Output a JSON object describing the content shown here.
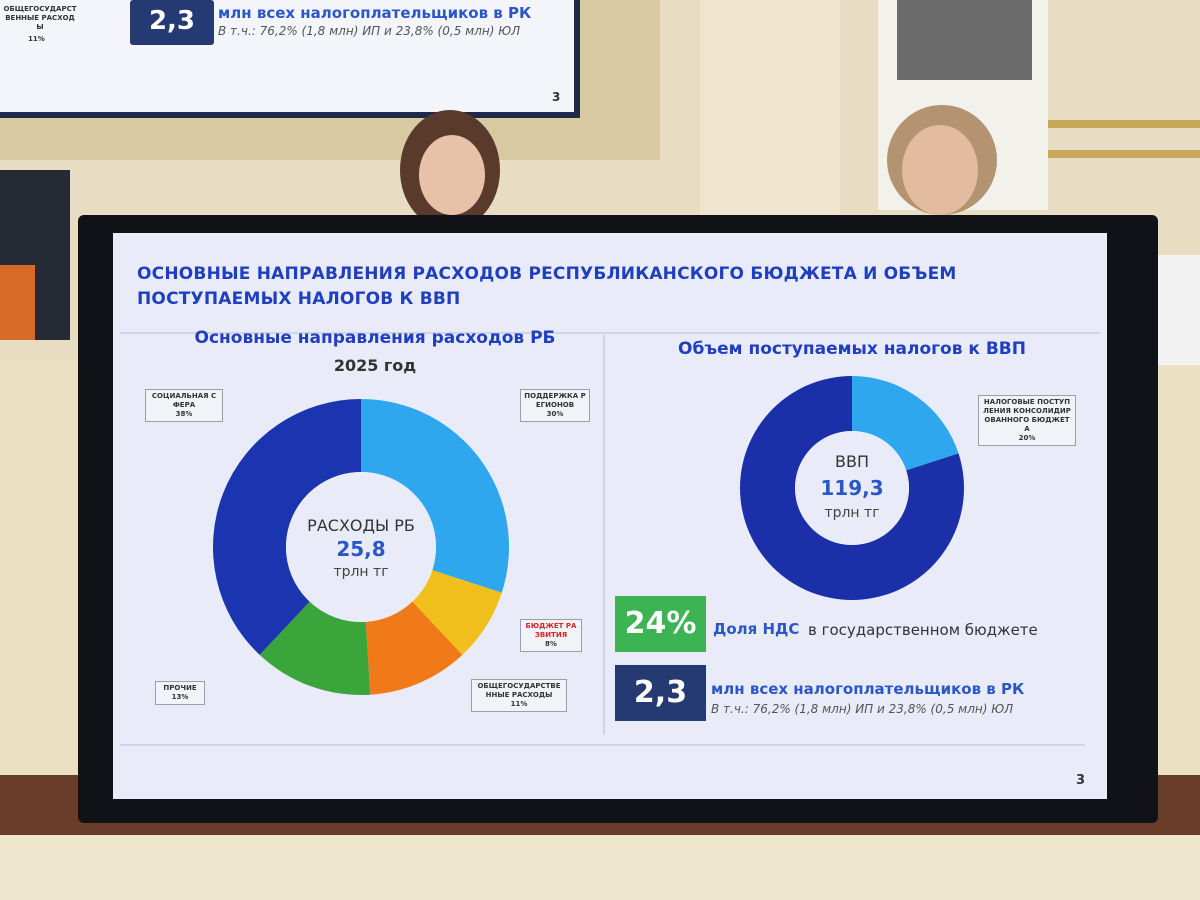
{
  "slide": {
    "title": "ОСНОВНЫЕ НАПРАВЛЕНИЯ РАСХОДОВ РЕСПУБЛИКАНСКОГО БЮДЖЕТА И ОБЪЕМ ПОСТУПАЕМЫХ НАЛОГОВ К ВВП",
    "page": "3",
    "stats": [
      {
        "value": "24%",
        "label": "Доля НДС",
        "text": "в государственном бюджете"
      },
      {
        "value": "2,3",
        "label": "млн всех налогоплательщиков в РК",
        "text": "В т.ч.: 76,2% (1,8 млн) ИП и 23,8% (0,5 млн) ЮЛ"
      }
    ]
  },
  "background_screen": {
    "category": "ОБЩЕГОСУДАРСТ ВЕННЫЕ РАСХОДЫ",
    "share": "11%",
    "value": "2,3",
    "label": "млн всех налогоплательщиков в РК",
    "text": "В т.ч.: 76,2% (1,8 млн) ИП и 23,8% (0,5 млн) ЮЛ",
    "page": "3"
  },
  "chart_data": [
    {
      "type": "pie",
      "title": "Основные направления расходов РБ",
      "subtitle": "2025 год",
      "center_label": "РАСХОДЫ РБ",
      "center_value": "25,8",
      "center_unit": "трлн тг",
      "categories": [
        "ПОДДЕРЖКА РЕГИОНОВ",
        "БЮДЖЕТ РАЗВИТИЯ",
        "ОБЩЕГОСУДАРСТВЕННЫЕ РАСХОДЫ",
        "ПРОЧИЕ",
        "СОЦИАЛЬНАЯ СФЕРА"
      ],
      "values": [
        30,
        8,
        11,
        13,
        38
      ],
      "value_labels": [
        "30%",
        "8%",
        "11%",
        "13%",
        "38%"
      ],
      "colors": [
        "#2ea7ef",
        "#f1bf1b",
        "#ef7a17",
        "#3aa53a",
        "#1b35b0"
      ]
    },
    {
      "type": "pie",
      "title": "Объем поступаемых налогов к ВВП",
      "center_label": "ВВП",
      "center_value": "119,3",
      "center_unit": "трлн тг",
      "categories": [
        "НАЛОГОВЫЕ ПОСТУПЛЕНИЯ КОНСОЛИДИРОВАННОГО БЮДЖЕТА",
        null
      ],
      "values": [
        20,
        80
      ],
      "value_labels": [
        "20%",
        null
      ],
      "colors": [
        "#2ea7ef",
        "#1b2fa8"
      ]
    }
  ]
}
